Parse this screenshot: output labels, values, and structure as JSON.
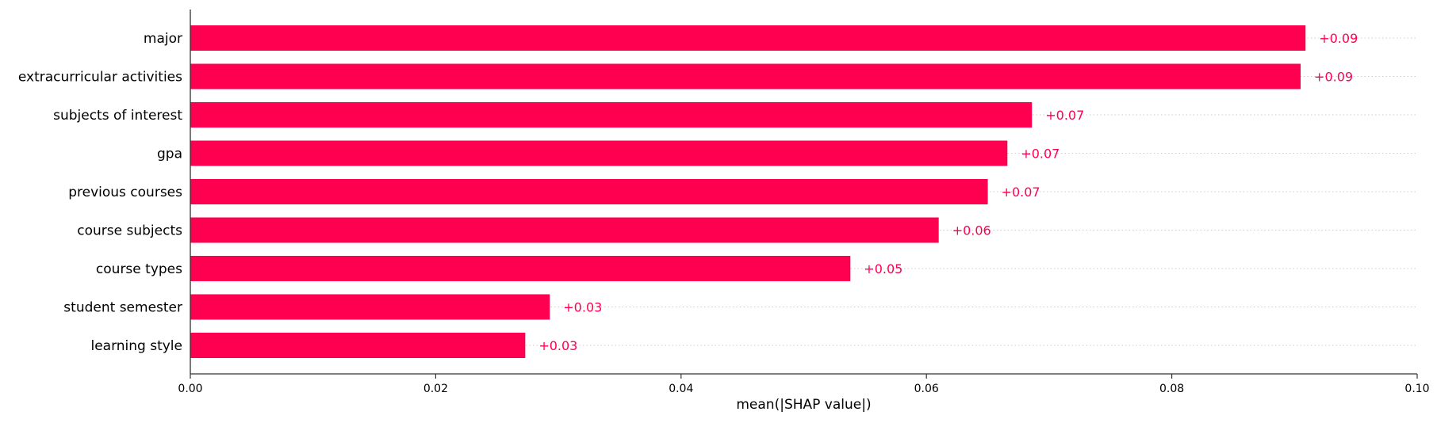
{
  "chart_data": {
    "type": "bar",
    "orientation": "horizontal",
    "categories": [
      "major",
      "extracurricular activities",
      "subjects of interest",
      "gpa",
      "previous courses",
      "course subjects",
      "course types",
      "student semester",
      "learning style"
    ],
    "values": [
      0.0909,
      0.0905,
      0.0686,
      0.0666,
      0.065,
      0.061,
      0.0538,
      0.0293,
      0.0273
    ],
    "value_labels": [
      "+0.09",
      "+0.09",
      "+0.07",
      "+0.07",
      "+0.07",
      "+0.06",
      "+0.05",
      "+0.03",
      "+0.03"
    ],
    "title": "",
    "xlabel": "mean(|SHAP value|)",
    "ylabel": "",
    "xlim": [
      0.0,
      0.1
    ],
    "xticks": [
      0.0,
      0.02,
      0.04,
      0.06,
      0.08,
      0.1
    ],
    "xtick_labels": [
      "0.00",
      "0.02",
      "0.04",
      "0.06",
      "0.08",
      "0.10"
    ],
    "grid": "dotted row guides",
    "legend": "none",
    "colors": {
      "bar": "#ff0051",
      "value_label": "#ff0051",
      "axis": "#333333",
      "guide": "#cccccc",
      "text": "#000000"
    }
  }
}
